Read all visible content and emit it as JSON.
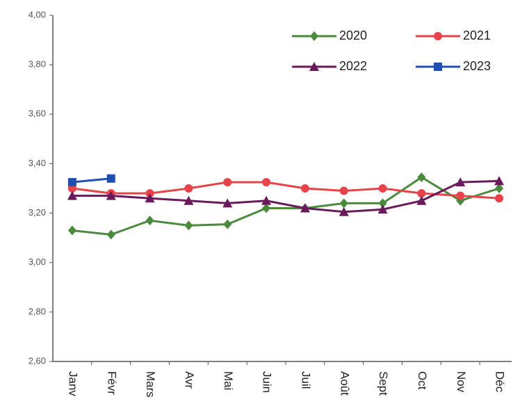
{
  "chart_data": {
    "type": "line",
    "categories": [
      "Janv",
      "Févr",
      "Mars",
      "Avr",
      "Mai",
      "Juin",
      "Juil",
      "Août",
      "Sept",
      "Oct",
      "Nov",
      "Déc"
    ],
    "series": [
      {
        "name": "2020",
        "color": "#4a8a3c",
        "marker": "diamond",
        "values": [
          3.13,
          3.113,
          3.17,
          3.15,
          3.155,
          3.22,
          3.22,
          3.24,
          3.24,
          3.345,
          3.25,
          3.3
        ]
      },
      {
        "name": "2021",
        "color": "#e8424a",
        "marker": "circle",
        "values": [
          3.3,
          3.28,
          3.28,
          3.3,
          3.325,
          3.325,
          3.3,
          3.29,
          3.3,
          3.28,
          3.27,
          3.26
        ]
      },
      {
        "name": "2022",
        "color": "#6a1a5a",
        "marker": "triangle",
        "values": [
          3.27,
          3.27,
          3.26,
          3.25,
          3.24,
          3.25,
          3.22,
          3.205,
          3.215,
          3.25,
          3.325,
          3.33
        ]
      },
      {
        "name": "2023",
        "color": "#1f4fb4",
        "marker": "square",
        "values": [
          3.325,
          3.34,
          null,
          null,
          null,
          null,
          null,
          null,
          null,
          null,
          null,
          null
        ]
      }
    ],
    "ylim": [
      2.6,
      4.0
    ],
    "yticks": [
      {
        "value": 2.6,
        "label": "2,60"
      },
      {
        "value": 2.8,
        "label": "2,80"
      },
      {
        "value": 3.0,
        "label": "3,00"
      },
      {
        "value": 3.2,
        "label": "3,20"
      },
      {
        "value": 3.4,
        "label": "3,40"
      },
      {
        "value": 3.6,
        "label": "3,60"
      },
      {
        "value": 3.8,
        "label": "3,80"
      },
      {
        "value": 4.0,
        "label": "4,00"
      }
    ],
    "grid": false,
    "legend": "top-right"
  }
}
